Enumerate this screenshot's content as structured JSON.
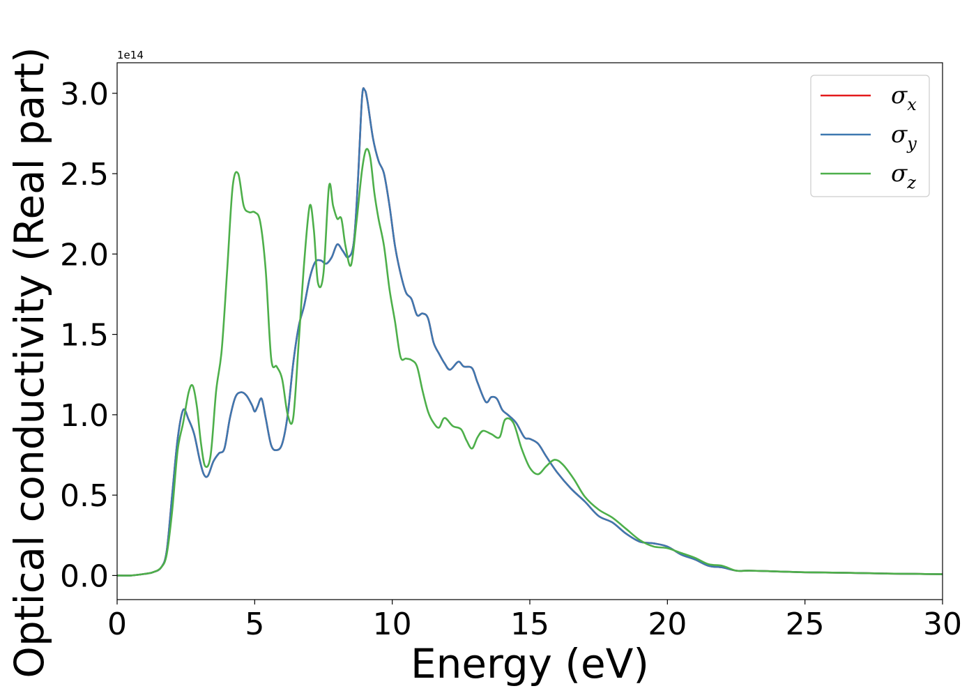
{
  "chart_data": {
    "type": "line",
    "xlabel": "Energy (eV)",
    "ylabel": "Optical conductivity (Real part)",
    "y_offset_text": "1e14",
    "y_scale": 100000000000000.0,
    "xlim": [
      0,
      30
    ],
    "ylim": [
      -0.15,
      3.19
    ],
    "xticks": [
      0,
      5,
      10,
      15,
      20,
      25,
      30
    ],
    "yticks": [
      0.0,
      0.5,
      1.0,
      1.5,
      2.0,
      2.5,
      3.0
    ],
    "xtick_labels": [
      "0",
      "5",
      "10",
      "15",
      "20",
      "25",
      "30"
    ],
    "ytick_labels": [
      "0.0",
      "0.5",
      "1.0",
      "1.5",
      "2.0",
      "2.5",
      "3.0"
    ],
    "grid": false,
    "legend_position": "top-right",
    "series": [
      {
        "name": "σx",
        "symbol": "σ",
        "subscript": "x",
        "color": "#e41a1c",
        "x": [
          0,
          0.5,
          1.0,
          1.3,
          1.6,
          1.8,
          2.0,
          2.2,
          2.4,
          2.6,
          2.8,
          3.0,
          3.15,
          3.3,
          3.5,
          3.7,
          3.9,
          4.1,
          4.3,
          4.5,
          4.7,
          4.9,
          5.0,
          5.1,
          5.25,
          5.4,
          5.6,
          5.8,
          6.0,
          6.2,
          6.4,
          6.6,
          6.8,
          7.0,
          7.2,
          7.4,
          7.6,
          7.8,
          8.0,
          8.2,
          8.4,
          8.6,
          8.75,
          8.9,
          9.0,
          9.1,
          9.3,
          9.5,
          9.7,
          9.9,
          10.1,
          10.3,
          10.5,
          10.7,
          10.9,
          11.1,
          11.3,
          11.5,
          11.7,
          11.9,
          12.1,
          12.4,
          12.6,
          12.9,
          13.1,
          13.4,
          13.6,
          13.8,
          14.0,
          14.2,
          14.5,
          14.8,
          15.0,
          15.3,
          15.6,
          16.0,
          16.5,
          17.0,
          17.5,
          18.0,
          18.5,
          19.0,
          19.5,
          20.0,
          20.5,
          21.0,
          21.5,
          22.0,
          22.5,
          23,
          24,
          25,
          26,
          27,
          28,
          29,
          30
        ],
        "y": [
          0.0,
          0.0,
          0.01,
          0.02,
          0.05,
          0.15,
          0.5,
          0.85,
          1.03,
          0.97,
          0.88,
          0.72,
          0.63,
          0.62,
          0.71,
          0.76,
          0.79,
          0.98,
          1.11,
          1.14,
          1.12,
          1.06,
          1.02,
          1.05,
          1.1,
          0.98,
          0.81,
          0.78,
          0.82,
          1.0,
          1.32,
          1.55,
          1.68,
          1.85,
          1.95,
          1.96,
          1.94,
          1.98,
          2.06,
          2.02,
          1.98,
          2.07,
          2.45,
          2.97,
          3.02,
          2.95,
          2.72,
          2.58,
          2.5,
          2.3,
          2.05,
          1.88,
          1.76,
          1.72,
          1.62,
          1.63,
          1.6,
          1.45,
          1.38,
          1.32,
          1.28,
          1.33,
          1.3,
          1.29,
          1.2,
          1.08,
          1.11,
          1.1,
          1.03,
          1.0,
          0.95,
          0.86,
          0.85,
          0.82,
          0.74,
          0.64,
          0.54,
          0.46,
          0.37,
          0.33,
          0.26,
          0.21,
          0.2,
          0.18,
          0.13,
          0.1,
          0.06,
          0.05,
          0.03,
          0.03,
          0.025,
          0.02,
          0.018,
          0.015,
          0.012,
          0.01,
          0.008
        ]
      },
      {
        "name": "σy",
        "symbol": "σ",
        "subscript": "y",
        "color": "#3d78b0",
        "x": [
          0,
          0.5,
          1.0,
          1.3,
          1.6,
          1.8,
          2.0,
          2.2,
          2.4,
          2.6,
          2.8,
          3.0,
          3.15,
          3.3,
          3.5,
          3.7,
          3.9,
          4.1,
          4.3,
          4.5,
          4.7,
          4.9,
          5.0,
          5.1,
          5.25,
          5.4,
          5.6,
          5.8,
          6.0,
          6.2,
          6.4,
          6.6,
          6.8,
          7.0,
          7.2,
          7.4,
          7.6,
          7.8,
          8.0,
          8.2,
          8.4,
          8.6,
          8.75,
          8.9,
          9.0,
          9.1,
          9.3,
          9.5,
          9.7,
          9.9,
          10.1,
          10.3,
          10.5,
          10.7,
          10.9,
          11.1,
          11.3,
          11.5,
          11.7,
          11.9,
          12.1,
          12.4,
          12.6,
          12.9,
          13.1,
          13.4,
          13.6,
          13.8,
          14.0,
          14.2,
          14.5,
          14.8,
          15.0,
          15.3,
          15.6,
          16.0,
          16.5,
          17.0,
          17.5,
          18.0,
          18.5,
          19.0,
          19.5,
          20.0,
          20.5,
          21.0,
          21.5,
          22.0,
          22.5,
          23,
          24,
          25,
          26,
          27,
          28,
          29,
          30
        ],
        "y": [
          0.0,
          0.0,
          0.01,
          0.02,
          0.05,
          0.15,
          0.5,
          0.85,
          1.03,
          0.97,
          0.88,
          0.72,
          0.63,
          0.62,
          0.71,
          0.76,
          0.79,
          0.98,
          1.11,
          1.14,
          1.12,
          1.06,
          1.02,
          1.05,
          1.1,
          0.98,
          0.81,
          0.78,
          0.82,
          1.0,
          1.32,
          1.55,
          1.68,
          1.85,
          1.95,
          1.96,
          1.94,
          1.98,
          2.06,
          2.02,
          1.98,
          2.07,
          2.45,
          2.97,
          3.02,
          2.95,
          2.72,
          2.58,
          2.5,
          2.3,
          2.05,
          1.88,
          1.76,
          1.72,
          1.62,
          1.63,
          1.6,
          1.45,
          1.38,
          1.32,
          1.28,
          1.33,
          1.3,
          1.29,
          1.2,
          1.08,
          1.11,
          1.1,
          1.03,
          1.0,
          0.95,
          0.86,
          0.85,
          0.82,
          0.74,
          0.64,
          0.54,
          0.46,
          0.37,
          0.33,
          0.26,
          0.21,
          0.2,
          0.18,
          0.13,
          0.1,
          0.06,
          0.05,
          0.03,
          0.03,
          0.025,
          0.02,
          0.018,
          0.015,
          0.012,
          0.01,
          0.008
        ]
      },
      {
        "name": "σz",
        "symbol": "σ",
        "subscript": "z",
        "color": "#4daf4a",
        "x": [
          0,
          0.5,
          1.0,
          1.3,
          1.6,
          1.8,
          2.0,
          2.2,
          2.4,
          2.6,
          2.75,
          2.9,
          3.05,
          3.2,
          3.4,
          3.6,
          3.8,
          4.0,
          4.2,
          4.4,
          4.6,
          4.8,
          5.0,
          5.2,
          5.4,
          5.6,
          5.8,
          6.0,
          6.2,
          6.4,
          6.6,
          6.8,
          7.0,
          7.15,
          7.3,
          7.5,
          7.7,
          7.85,
          8.0,
          8.15,
          8.3,
          8.5,
          8.7,
          8.9,
          9.05,
          9.2,
          9.35,
          9.5,
          9.7,
          9.9,
          10.1,
          10.3,
          10.5,
          10.7,
          10.9,
          11.1,
          11.3,
          11.5,
          11.7,
          11.9,
          12.2,
          12.5,
          12.7,
          12.9,
          13.1,
          13.3,
          13.6,
          13.9,
          14.1,
          14.4,
          14.7,
          15.0,
          15.3,
          15.6,
          15.9,
          16.2,
          16.6,
          17.0,
          17.5,
          18.0,
          18.5,
          19.0,
          19.5,
          20.0,
          20.5,
          21.0,
          21.5,
          22.0,
          22.5,
          23,
          24,
          25,
          26,
          27,
          28,
          29,
          30
        ],
        "y": [
          0.0,
          0.0,
          0.01,
          0.02,
          0.05,
          0.13,
          0.4,
          0.78,
          0.95,
          1.14,
          1.18,
          1.05,
          0.82,
          0.68,
          0.75,
          1.15,
          1.4,
          1.9,
          2.42,
          2.5,
          2.3,
          2.26,
          2.26,
          2.2,
          1.9,
          1.35,
          1.3,
          1.22,
          1.0,
          0.98,
          1.45,
          1.95,
          2.3,
          2.15,
          1.82,
          1.88,
          2.42,
          2.3,
          2.22,
          2.22,
          2.05,
          1.93,
          2.2,
          2.52,
          2.65,
          2.6,
          2.38,
          2.22,
          2.05,
          1.78,
          1.58,
          1.36,
          1.35,
          1.34,
          1.3,
          1.15,
          1.02,
          0.95,
          0.92,
          0.98,
          0.93,
          0.91,
          0.84,
          0.79,
          0.86,
          0.9,
          0.88,
          0.86,
          0.97,
          0.95,
          0.79,
          0.67,
          0.63,
          0.68,
          0.72,
          0.69,
          0.6,
          0.49,
          0.41,
          0.36,
          0.29,
          0.22,
          0.18,
          0.17,
          0.14,
          0.11,
          0.07,
          0.06,
          0.03,
          0.03,
          0.025,
          0.02,
          0.018,
          0.015,
          0.012,
          0.01,
          0.008
        ]
      }
    ]
  }
}
